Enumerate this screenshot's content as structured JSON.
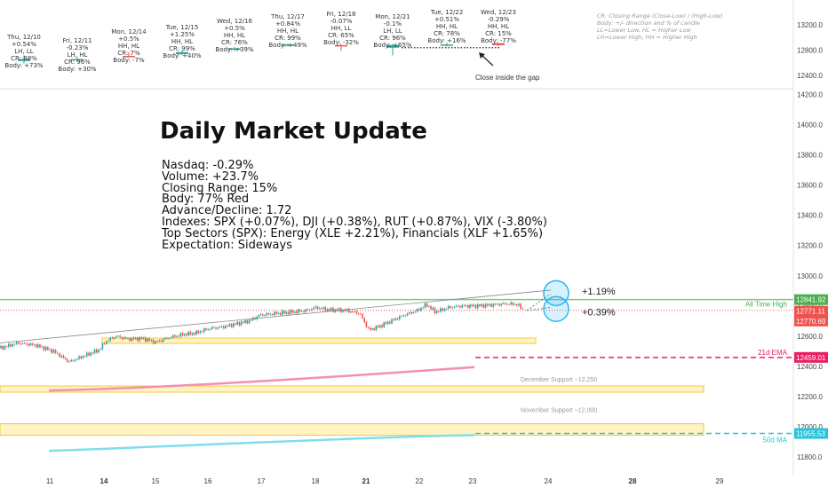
{
  "chart_data": {
    "type": "candlestick",
    "title": "Daily Market Update",
    "y_ticks": [
      11800,
      12000,
      12200,
      12400,
      12600,
      12800,
      13000,
      13200,
      13400,
      13600,
      13800,
      14000,
      14200
    ],
    "y_ticks_top": [
      12400,
      12800,
      13200
    ],
    "x_ticks": [
      "11",
      "14",
      "15",
      "16",
      "17",
      "18",
      "21",
      "22",
      "23",
      "24",
      "28",
      "29"
    ],
    "x_ticks_bold": [
      "14",
      "21",
      "28"
    ],
    "price_labels": [
      {
        "text": "12841.92",
        "color": "#4caf50"
      },
      {
        "text": "12771.11",
        "color": "#ef5350"
      },
      {
        "text": "12770.69",
        "color": "#ef5350"
      },
      {
        "text": "12459.01",
        "color": "#e91e63"
      },
      {
        "text": "11955.53",
        "color": "#26c6da"
      }
    ],
    "annotations": {
      "all_time_high": "All Time High",
      "ema21": "21d EMA",
      "ma50": "50d MA",
      "dec_support": "December Support ~12,250",
      "nov_support": "November Support ~12,000",
      "pct_up": "+1.19%",
      "pct_mid": "+0.39%",
      "gap_note": "Close inside the gap"
    },
    "daily_summaries": [
      {
        "lines": [
          "Thu, 12/10",
          "+0.54%",
          "LH, LL",
          "CR: 88%",
          "Body: +73%"
        ],
        "color": "#26a69a"
      },
      {
        "lines": [
          "Fri, 12/11",
          "-0.23%",
          "LH, HL",
          "CR: 96%",
          "Body: +30%"
        ],
        "color": "#26a69a"
      },
      {
        "lines": [
          "Mon, 12/14",
          "+0.5%",
          "HH, HL",
          "CR: 7%",
          "Body: -7%"
        ],
        "color": "#ef5350"
      },
      {
        "lines": [
          "Tue, 12/15",
          "+1.25%",
          "HH, HL",
          "CR: 99%",
          "Body: +40%"
        ],
        "color": "#26a69a"
      },
      {
        "lines": [
          "Wed, 12/16",
          "+0.5%",
          "HH, HL",
          "CR: 76%",
          "Body: +39%"
        ],
        "color": "#26a69a"
      },
      {
        "lines": [
          "Thu, 12/17",
          "+0.84%",
          "HH, HL",
          "CR: 99%",
          "Body: +49%"
        ],
        "color": "#26a69a"
      },
      {
        "lines": [
          "Fri, 12/18",
          "-0.07%",
          "HH, LL",
          "CR: 65%",
          "Body: -32%"
        ],
        "color": "#ef5350"
      },
      {
        "lines": [
          "Mon, 12/21",
          "-0.1%",
          "LH, LL",
          "CR: 96%",
          "Body: +65%"
        ],
        "color": "#26a69a"
      },
      {
        "lines": [
          "Tue, 12/22",
          "+0.51%",
          "HH, HL",
          "CR: 78%",
          "Body: +16%"
        ],
        "color": "#26a69a"
      },
      {
        "lines": [
          "Wed, 12/23",
          "-0.29%",
          "HH, HL",
          "CR: 15%",
          "Body: -77%"
        ],
        "color": "#ef5350"
      }
    ],
    "legend_lines": [
      "CR: Closing Range (Close-Low) / (High-Low)",
      "Body: +/- direction and % of candle",
      "LL=Lower Low, HL = Higher Low",
      "LH=Lower High, HH = Higher High"
    ],
    "summary_text": [
      "Nasdaq: -0.29%",
      "Volume: +23.7%",
      "Closing Range: 15%",
      "Body: 77% Red",
      "Advance/Decline: 1.72",
      "Indexes: SPX (+0.07%), DJI (+0.38%), RUT (+0.87%), VIX (-3.80%)",
      "Top Sectors (SPX): Energy (XLE +2.21%), Financials (XLF +1.65%)",
      "Expectation: Sideways"
    ],
    "levels": {
      "all_time_high": 12841.92,
      "ema21": 12459.01,
      "ma50": 11955.53,
      "last_close_1": 12771.11,
      "last_close_2": 12770.69
    }
  },
  "colors": {
    "up": "#26a69a",
    "down": "#ef5350",
    "ath": "#4caf50",
    "ema": "#e91e63",
    "ma": "#26c6da"
  }
}
